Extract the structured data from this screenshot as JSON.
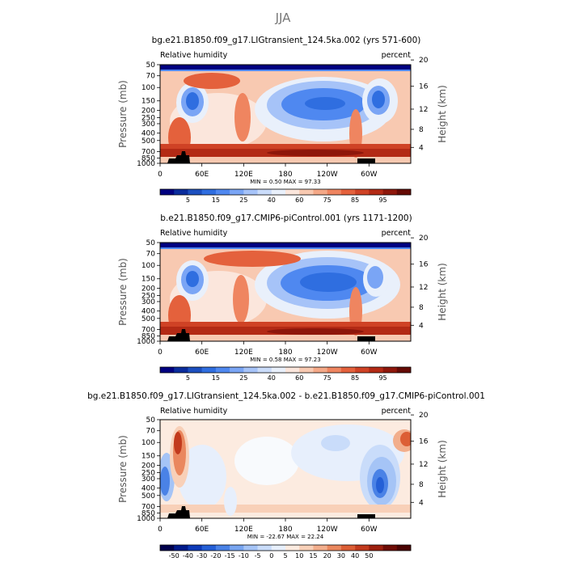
{
  "figure": {
    "title": "JJA"
  },
  "colors": {
    "rh_levels": [
      "#000080",
      "#0a2c9c",
      "#1c4fbf",
      "#2f6ee0",
      "#4f88f0",
      "#7aa5f5",
      "#a6c3f8",
      "#cadcfa",
      "#e9f0fb",
      "#fbe6dc",
      "#f8c9b1",
      "#f4a887",
      "#ef8560",
      "#e4613c",
      "#cf4225",
      "#b32a15",
      "#8e170b",
      "#650a05"
    ],
    "diff_levels": [
      "#00004c",
      "#001a8a",
      "#0d3ab8",
      "#245fd6",
      "#4a82e6",
      "#78a5f0",
      "#a5c4f6",
      "#c9dcfa",
      "#e7effc",
      "#fcebe0",
      "#f8d0b8",
      "#f2ae8c",
      "#ea875e",
      "#dc5e35",
      "#c23a1d",
      "#9c1f0e",
      "#6e0c05",
      "#4a0302"
    ],
    "terrain": "#000000"
  },
  "chart_data": [
    {
      "type": "heatmap",
      "title": "bg.e21.B1850.f09_g17.LIGtransient_124.5ka.002 (yrs 571-600)",
      "left_label": "Relative humidity",
      "right_label": "percent",
      "ylabel": "Pressure (mb)",
      "ylabel_right": "Height (km)",
      "x_ticks": [
        "0",
        "60E",
        "120E",
        "180",
        "120W",
        "60W"
      ],
      "x_tick_values": [
        0,
        60,
        120,
        180,
        240,
        300
      ],
      "xlim": [
        0,
        360
      ],
      "y_ticks": [
        "50",
        "70",
        "100",
        "150",
        "200",
        "250",
        "300",
        "400",
        "500",
        "700",
        "850",
        "1000"
      ],
      "y_tick_values": [
        50,
        70,
        100,
        150,
        200,
        250,
        300,
        400,
        500,
        700,
        850,
        1000
      ],
      "ylim": [
        1000,
        50
      ],
      "y_scale": "log",
      "height_ticks": [
        "20",
        "16",
        "12",
        "8",
        "4"
      ],
      "height_tick_values": [
        20,
        16,
        12,
        8,
        4
      ],
      "stats": "MIN =    0.50   MAX =   97.33",
      "colorbar_labels": [
        "5",
        "15",
        "25",
        "40",
        "60",
        "75",
        "85",
        "95"
      ],
      "colorbar_levels": [
        1,
        3,
        5,
        10,
        15,
        20,
        25,
        30,
        40,
        50,
        60,
        65,
        70,
        75,
        80,
        85,
        90,
        95
      ]
    },
    {
      "type": "heatmap",
      "title": "b.e21.B1850.f09_g17.CMIP6-piControl.001 (yrs 1171-1200)",
      "left_label": "Relative humidity",
      "right_label": "percent",
      "ylabel": "Pressure (mb)",
      "ylabel_right": "Height (km)",
      "x_ticks": [
        "0",
        "60E",
        "120E",
        "180",
        "120W",
        "60W"
      ],
      "x_tick_values": [
        0,
        60,
        120,
        180,
        240,
        300
      ],
      "xlim": [
        0,
        360
      ],
      "y_ticks": [
        "50",
        "70",
        "100",
        "150",
        "200",
        "250",
        "300",
        "400",
        "500",
        "700",
        "850",
        "1000"
      ],
      "y_tick_values": [
        50,
        70,
        100,
        150,
        200,
        250,
        300,
        400,
        500,
        700,
        850,
        1000
      ],
      "ylim": [
        1000,
        50
      ],
      "y_scale": "log",
      "height_ticks": [
        "20",
        "16",
        "12",
        "8",
        "4"
      ],
      "height_tick_values": [
        20,
        16,
        12,
        8,
        4
      ],
      "stats": "MIN =    0.58   MAX =   97.23",
      "colorbar_labels": [
        "5",
        "15",
        "25",
        "40",
        "60",
        "75",
        "85",
        "95"
      ],
      "colorbar_levels": [
        1,
        3,
        5,
        10,
        15,
        20,
        25,
        30,
        40,
        50,
        60,
        65,
        70,
        75,
        80,
        85,
        90,
        95
      ]
    },
    {
      "type": "heatmap",
      "title": "bg.e21.B1850.f09_g17.LIGtransient_124.5ka.002 - b.e21.B1850.f09_g17.CMIP6-piControl.001",
      "left_label": "Relative humidity",
      "right_label": "percent",
      "ylabel": "Pressure (mb)",
      "ylabel_right": "Height (km)",
      "x_ticks": [
        "0",
        "60E",
        "120E",
        "180",
        "120W",
        "60W"
      ],
      "x_tick_values": [
        0,
        60,
        120,
        180,
        240,
        300
      ],
      "xlim": [
        0,
        360
      ],
      "y_ticks": [
        "50",
        "70",
        "100",
        "150",
        "200",
        "250",
        "300",
        "400",
        "500",
        "700",
        "850",
        "1000"
      ],
      "y_tick_values": [
        50,
        70,
        100,
        150,
        200,
        250,
        300,
        400,
        500,
        700,
        850,
        1000
      ],
      "ylim": [
        1000,
        50
      ],
      "y_scale": "log",
      "height_ticks": [
        "20",
        "16",
        "12",
        "8",
        "4"
      ],
      "height_tick_values": [
        20,
        16,
        12,
        8,
        4
      ],
      "stats": "MIN =  -22.67   MAX =   22.24",
      "colorbar_labels": [
        "-50",
        "-40",
        "-30",
        "-20",
        "-15",
        "-10",
        "-5",
        "0",
        "5",
        "10",
        "15",
        "20",
        "30",
        "40",
        "50"
      ],
      "colorbar_levels": [
        -60,
        -50,
        -40,
        -30,
        -20,
        -15,
        -10,
        -5,
        0,
        5,
        10,
        15,
        20,
        30,
        40,
        50,
        60
      ]
    }
  ]
}
